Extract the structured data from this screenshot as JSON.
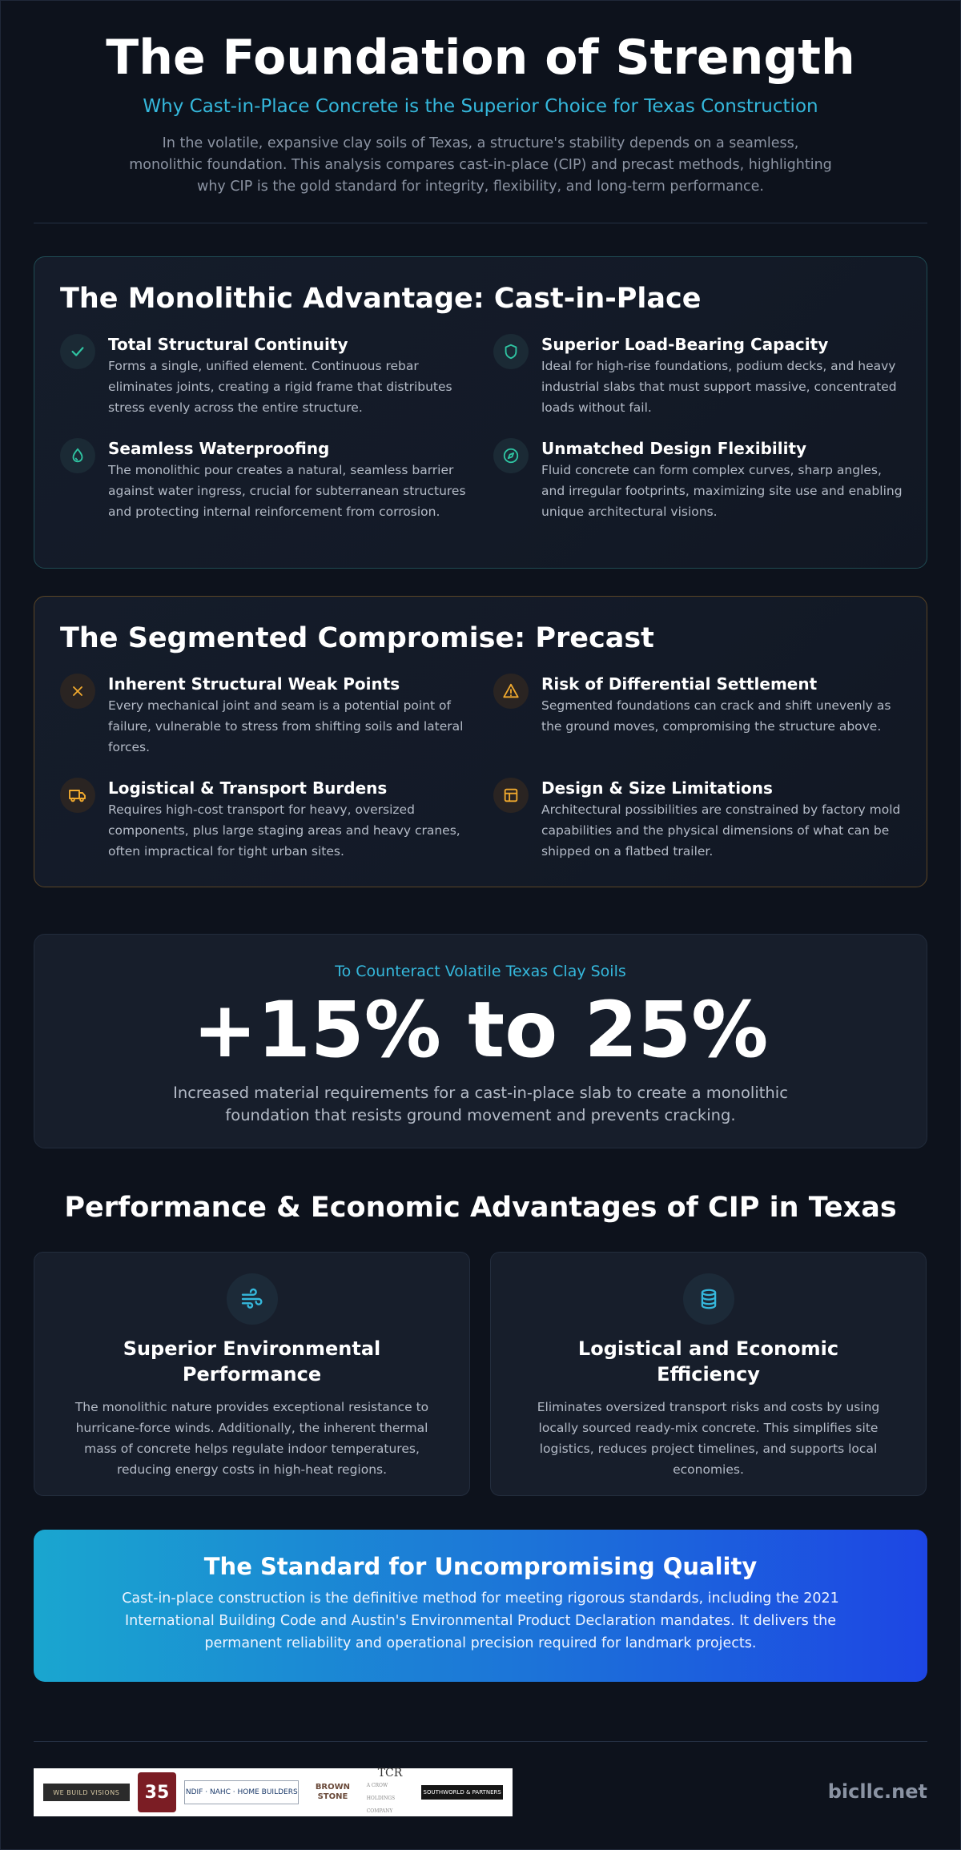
{
  "header": {
    "title": "The Foundation of Strength",
    "subtitle": "Why Cast-in-Place Concrete is the Superior Choice for Texas Construction",
    "intro": "In the volatile, expansive clay soils of Texas, a structure's stability depends on a seamless, monolithic foundation. This analysis compares cast-in-place (CIP) and precast methods, highlighting why CIP is the gold standard for integrity, flexibility, and long-term performance."
  },
  "cip": {
    "title": "The Monolithic Advantage: Cast-in-Place",
    "accent": "#2fc4a2",
    "features": [
      {
        "icon": "check-icon",
        "title": "Total Structural Continuity",
        "text": "Forms a single, unified element. Continuous rebar eliminates joints, creating a rigid frame that distributes stress evenly across the entire structure."
      },
      {
        "icon": "shield-icon",
        "title": "Superior Load-Bearing Capacity",
        "text": "Ideal for high-rise foundations, podium decks, and heavy industrial slabs that must support massive, concentrated loads without fail."
      },
      {
        "icon": "droplet-icon",
        "title": "Seamless Waterproofing",
        "text": "The monolithic pour creates a natural, seamless barrier against water ingress, crucial for subterranean structures and protecting internal reinforcement from corrosion."
      },
      {
        "icon": "compass-icon",
        "title": "Unmatched Design Flexibility",
        "text": "Fluid concrete can form complex curves, sharp angles, and irregular footprints, maximizing site use and enabling unique architectural visions."
      }
    ]
  },
  "precast": {
    "title": "The Segmented Compromise: Precast",
    "accent": "#f0a92e",
    "features": [
      {
        "icon": "x-icon",
        "title": "Inherent Structural Weak Points",
        "text": "Every mechanical joint and seam is a potential point of failure, vulnerable to stress from shifting soils and lateral forces."
      },
      {
        "icon": "warning-icon",
        "title": "Risk of Differential Settlement",
        "text": "Segmented foundations can crack and shift unevenly as the ground moves, compromising the structure above."
      },
      {
        "icon": "truck-icon",
        "title": "Logistical & Transport Burdens",
        "text": "Requires high-cost transport for heavy, oversized components, plus large staging areas and heavy cranes, often impractical for tight urban sites."
      },
      {
        "icon": "layout-icon",
        "title": "Design & Size Limitations",
        "text": "Architectural possibilities are constrained by factory mold capabilities and the physical dimensions of what can be shipped on a flatbed trailer."
      }
    ]
  },
  "stat": {
    "lead": "To Counteract Volatile Texas Clay Soils",
    "value": "+15% to 25%",
    "description": "Increased material requirements for a cast-in-place slab to create a monolithic foundation that resists ground movement and prevents cracking."
  },
  "performance": {
    "title": "Performance & Economic Advantages of CIP in Texas",
    "cards": [
      {
        "icon": "wind-icon",
        "title": "Superior Environmental Performance",
        "text": "The monolithic nature provides exceptional resistance to hurricane-force winds. Additionally, the inherent thermal mass of concrete helps regulate indoor temperatures, reducing energy costs in high-heat regions."
      },
      {
        "icon": "database-icon",
        "title": "Logistical and Economic Efficiency",
        "text": "Eliminates oversized transport risks and costs by using locally sourced ready-mix concrete. This simplifies site logistics, reduces project timelines, and supports local economies."
      }
    ]
  },
  "banner": {
    "title": "The Standard for Uncompromising Quality",
    "text": "Cast-in-place construction is the definitive method for meeting rigorous standards, including the 2021 International Building Code and Austin's Environmental Product Declaration mandates. It delivers the permanent reliability and operational precision required for landmark projects."
  },
  "footer": {
    "logos": {
      "vision": "WE BUILD VISIONS",
      "anniversary": "35",
      "group": "NDIF · NAHC · HOME BUILDERS",
      "brown": [
        "BROWN",
        "STONE"
      ],
      "tcr": "TCR",
      "tcr_sub": "A CROW HOLDINGS COMPANY",
      "sp": "SOUTHWORLD & PARTNERS"
    },
    "site": "bicllc.net"
  }
}
